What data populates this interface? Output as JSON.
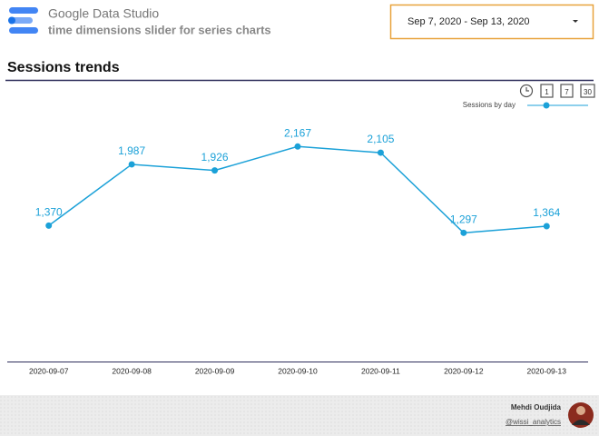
{
  "header": {
    "title": "Google Data Studio",
    "subtitle": "time dimensions slider for series charts"
  },
  "date_range": "Sep 7, 2020 - Sep 13, 2020",
  "granularity": [
    "1",
    "7",
    "30"
  ],
  "chart_data": {
    "type": "line",
    "title": "Sessions trends",
    "categories": [
      "2020-09-07",
      "2020-09-08",
      "2020-09-09",
      "2020-09-10",
      "2020-09-11",
      "2020-09-12",
      "2020-09-13"
    ],
    "series": [
      {
        "name": "Sessions by day",
        "color": "#1ba1d8",
        "values": [
          1370,
          1987,
          1926,
          2167,
          2105,
          1297,
          1364
        ],
        "value_labels": [
          "1,370",
          "1,987",
          "1,926",
          "2,167",
          "2,105",
          "1,297",
          "1,364"
        ]
      }
    ],
    "ylim": [
      0,
      2600
    ],
    "legend": "top-right",
    "grid": false
  },
  "footer": {
    "author": "Mehdi Oudjida",
    "handle": "@wissi_analytics"
  }
}
